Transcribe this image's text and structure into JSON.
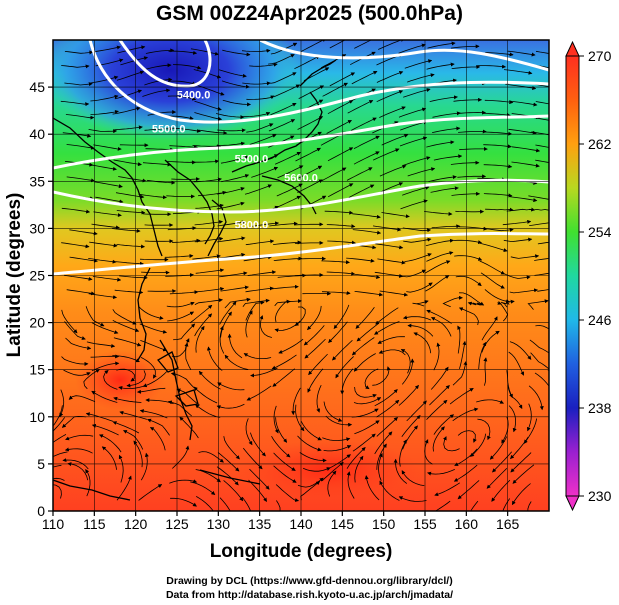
{
  "title": "GSM 00Z24Apr2025 (500.0hPa)",
  "axes": {
    "xlabel": "Longitude (degrees)",
    "ylabel": "Latitude  (degrees)",
    "xlim": [
      110,
      170
    ],
    "ylim": [
      0,
      50
    ],
    "xticks": [
      110,
      115,
      120,
      125,
      130,
      135,
      140,
      145,
      150,
      155,
      160,
      165
    ],
    "yticks": [
      0,
      5,
      10,
      15,
      20,
      25,
      30,
      35,
      40,
      45
    ],
    "grid": true
  },
  "colorbar": {
    "min": 230,
    "max": 270,
    "ticks": [
      230,
      238,
      246,
      254,
      262,
      270
    ]
  },
  "contours": [
    {
      "label": "5500.0",
      "lon": 134,
      "lat": 37.0
    },
    {
      "label": "5600.0",
      "lon": 140,
      "lat": 35.0
    },
    {
      "label": "5800.0",
      "lon": 134,
      "lat": 30.0
    },
    {
      "label": "5500.0",
      "lon": 124,
      "lat": 40.2
    },
    {
      "label": "5400.0",
      "lon": 127,
      "lat": 43.8
    }
  ],
  "credits": {
    "drawing": "Drawing by DCL (https://www.gfd-dennou.org/library/dcl/)",
    "data": "Data from http://database.rish.kyoto-u.ac.jp/arch/jmadata/"
  }
}
